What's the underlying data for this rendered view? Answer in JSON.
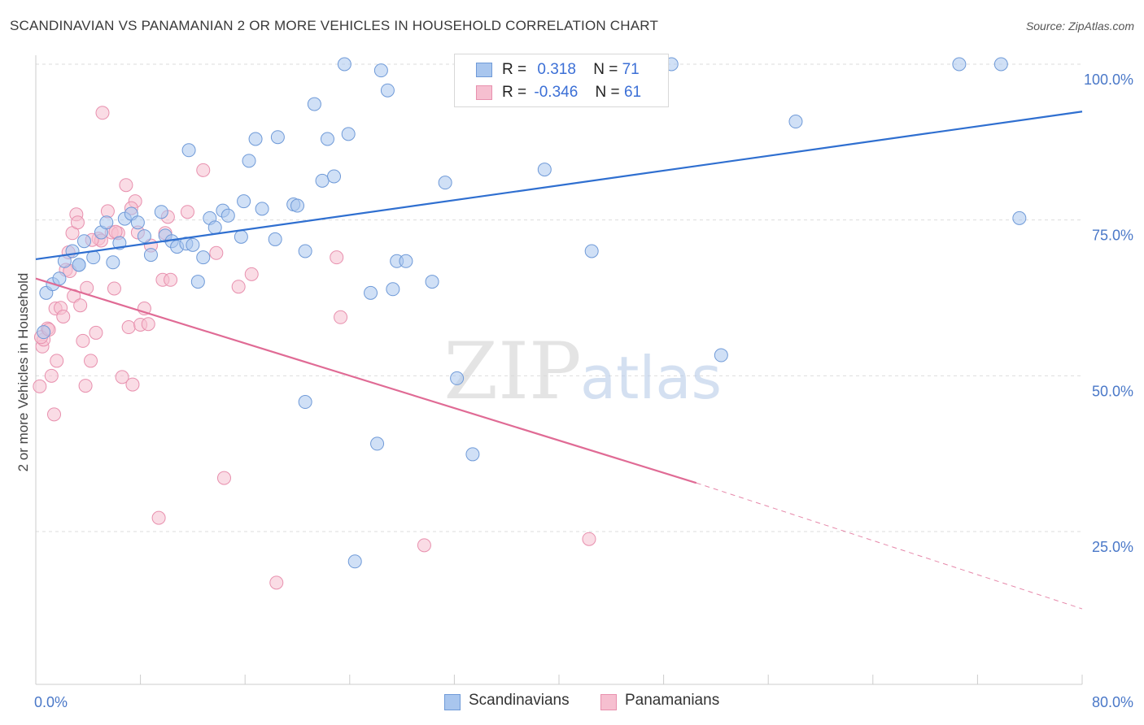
{
  "title": "SCANDINAVIAN VS PANAMANIAN 2 OR MORE VEHICLES IN HOUSEHOLD CORRELATION CHART",
  "source": "Source: ZipAtlas.com",
  "watermark": {
    "zip": "ZIP",
    "atlas": "atlas"
  },
  "legend": {
    "r_label": "R =",
    "n_label": "N =",
    "rows": [
      {
        "r": "0.318",
        "n": "71"
      },
      {
        "r": "-0.346",
        "n": "61"
      }
    ]
  },
  "colors": {
    "blue_fill": "#a9c6ee",
    "blue_stroke": "#6f9ad8",
    "blue_line": "#2f6fd0",
    "pink_fill": "#f6bfd0",
    "pink_stroke": "#e890ae",
    "pink_line": "#e06b95",
    "tick_text": "#4a78c8",
    "grid": "#dddddd"
  },
  "chart_data": {
    "type": "scatter",
    "title": "SCANDINAVIAN VS PANAMANIAN 2 OR MORE VEHICLES IN HOUSEHOLD CORRELATION CHART",
    "xlabel": "",
    "ylabel": "2 or more Vehicles in Household",
    "xlim": [
      0,
      80
    ],
    "ylim": [
      0,
      102
    ],
    "x_tick_labels": [
      "0.0%",
      "80.0%"
    ],
    "y_ticks": [
      25,
      50,
      75,
      100
    ],
    "y_tick_labels": [
      "25.0%",
      "50.0%",
      "75.0%",
      "100.0%"
    ],
    "grid": true,
    "legend_position": "bottom",
    "series": [
      {
        "name": "Scandinavians",
        "r": 0.318,
        "n": 71,
        "trend": {
          "x": [
            0,
            80
          ],
          "y": [
            68.7,
            92.4
          ]
        },
        "points": [
          [
            0.6,
            57.0
          ],
          [
            0.8,
            63.3
          ],
          [
            1.3,
            64.7
          ],
          [
            1.8,
            65.6
          ],
          [
            2.2,
            68.4
          ],
          [
            2.8,
            70.0
          ],
          [
            3.3,
            67.8
          ],
          [
            3.7,
            71.6
          ],
          [
            4.4,
            69.0
          ],
          [
            5.0,
            73.0
          ],
          [
            5.4,
            74.6
          ],
          [
            5.9,
            68.2
          ],
          [
            6.4,
            71.3
          ],
          [
            6.8,
            75.2
          ],
          [
            7.3,
            76.0
          ],
          [
            7.8,
            74.6
          ],
          [
            8.3,
            72.4
          ],
          [
            8.8,
            69.4
          ],
          [
            9.6,
            76.3
          ],
          [
            9.9,
            72.5
          ],
          [
            10.4,
            71.6
          ],
          [
            10.8,
            70.7
          ],
          [
            11.5,
            71.2
          ],
          [
            11.7,
            86.2
          ],
          [
            12.4,
            65.1
          ],
          [
            12.8,
            69.0
          ],
          [
            13.3,
            75.3
          ],
          [
            13.7,
            73.8
          ],
          [
            14.3,
            76.5
          ],
          [
            14.7,
            75.7
          ],
          [
            15.7,
            72.3
          ],
          [
            15.9,
            78.0
          ],
          [
            16.3,
            84.5
          ],
          [
            16.8,
            88.0
          ],
          [
            17.3,
            76.8
          ],
          [
            18.3,
            71.9
          ],
          [
            18.5,
            88.3
          ],
          [
            19.7,
            77.5
          ],
          [
            20.0,
            77.3
          ],
          [
            20.6,
            70.0
          ],
          [
            21.3,
            93.6
          ],
          [
            21.9,
            81.3
          ],
          [
            22.3,
            88.0
          ],
          [
            22.8,
            82.0
          ],
          [
            23.6,
            100.0
          ],
          [
            23.9,
            88.8
          ],
          [
            25.6,
            63.3
          ],
          [
            26.4,
            99.0
          ],
          [
            26.9,
            95.8
          ],
          [
            27.3,
            63.9
          ],
          [
            27.6,
            68.4
          ],
          [
            28.3,
            68.4
          ],
          [
            30.3,
            65.1
          ],
          [
            31.3,
            81.0
          ],
          [
            32.2,
            49.6
          ],
          [
            33.7,
            100.0
          ],
          [
            38.9,
            83.1
          ],
          [
            41.6,
            100.0
          ],
          [
            42.5,
            70.0
          ],
          [
            48.6,
            100.0
          ],
          [
            52.4,
            53.3
          ],
          [
            58.1,
            90.8
          ],
          [
            70.6,
            100.0
          ],
          [
            73.8,
            100.0
          ],
          [
            75.2,
            75.3
          ],
          [
            20.6,
            45.8
          ],
          [
            26.1,
            39.1
          ],
          [
            33.4,
            37.4
          ],
          [
            24.4,
            20.2
          ],
          [
            3.3,
            67.8
          ],
          [
            12.0,
            71.0
          ]
        ]
      },
      {
        "name": "Panamanians",
        "r": -0.346,
        "n": 61,
        "trend": {
          "x": [
            0,
            50.5
          ],
          "y": [
            65.6,
            32.8
          ]
        },
        "trend_dashed": {
          "x": [
            50.5,
            80
          ],
          "y": [
            32.8,
            12.6
          ]
        },
        "points": [
          [
            0.3,
            48.3
          ],
          [
            0.5,
            54.7
          ],
          [
            0.6,
            55.8
          ],
          [
            0.9,
            57.6
          ],
          [
            1.2,
            50.0
          ],
          [
            1.4,
            43.8
          ],
          [
            1.5,
            60.8
          ],
          [
            1.6,
            52.4
          ],
          [
            1.9,
            60.9
          ],
          [
            2.1,
            59.5
          ],
          [
            2.3,
            67.0
          ],
          [
            2.5,
            69.8
          ],
          [
            2.8,
            72.9
          ],
          [
            2.9,
            62.8
          ],
          [
            3.1,
            75.9
          ],
          [
            3.2,
            74.6
          ],
          [
            3.4,
            61.3
          ],
          [
            3.6,
            55.6
          ],
          [
            3.8,
            48.4
          ],
          [
            3.9,
            64.1
          ],
          [
            4.2,
            52.4
          ],
          [
            4.6,
            56.9
          ],
          [
            4.8,
            72.0
          ],
          [
            5.0,
            71.7
          ],
          [
            5.1,
            92.2
          ],
          [
            5.5,
            76.4
          ],
          [
            5.8,
            73.0
          ],
          [
            6.0,
            64.0
          ],
          [
            6.3,
            72.9
          ],
          [
            6.6,
            49.8
          ],
          [
            6.9,
            80.6
          ],
          [
            7.1,
            57.8
          ],
          [
            7.4,
            48.6
          ],
          [
            7.6,
            78.0
          ],
          [
            7.8,
            73.0
          ],
          [
            8.0,
            58.2
          ],
          [
            8.3,
            60.8
          ],
          [
            8.6,
            58.3
          ],
          [
            8.8,
            70.9
          ],
          [
            9.4,
            27.2
          ],
          [
            9.7,
            65.4
          ],
          [
            9.9,
            72.9
          ],
          [
            10.1,
            75.5
          ],
          [
            10.3,
            65.4
          ],
          [
            11.6,
            76.3
          ],
          [
            12.8,
            83.0
          ],
          [
            13.8,
            69.7
          ],
          [
            14.4,
            33.6
          ],
          [
            15.5,
            64.3
          ],
          [
            16.5,
            66.3
          ],
          [
            18.4,
            16.8
          ],
          [
            23.0,
            69.0
          ],
          [
            23.3,
            59.4
          ],
          [
            29.7,
            22.8
          ],
          [
            42.3,
            23.8
          ],
          [
            0.4,
            56.2
          ],
          [
            1.0,
            57.4
          ],
          [
            2.6,
            66.8
          ],
          [
            4.3,
            71.8
          ],
          [
            6.1,
            73.1
          ],
          [
            7.3,
            76.9
          ]
        ]
      }
    ]
  },
  "bottom_legend": [
    "Scandinavians",
    "Panamanians"
  ]
}
